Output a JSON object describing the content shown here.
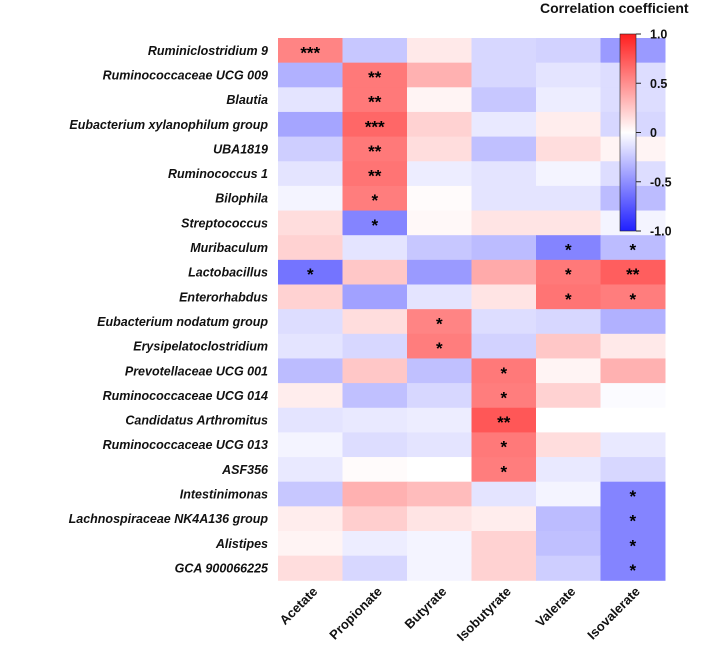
{
  "chart_data": {
    "type": "heatmap",
    "title": "",
    "xlabel": "",
    "ylabel": "",
    "columns": [
      "Acetate",
      "Propionate",
      "Butyrate",
      "Isobutyrate",
      "Valerate",
      "Isovalerate"
    ],
    "rows": [
      "Ruminiclostridium 9",
      "Ruminococcaceae UCG 009",
      "Blautia",
      "Eubacterium xylanophilum group",
      "UBA1819",
      "Ruminococcus 1",
      "Bilophila",
      "Streptococcus",
      "Muribaculum",
      "Lactobacillus",
      "Enterorhabdus",
      "Eubacterium nodatum group",
      "Erysipelatoclostridium",
      "Prevotellaceae UCG 001",
      "Ruminococcaceae UCG 014",
      "Candidatus Arthromitus",
      "Ruminococcaceae UCG 013",
      "ASF356",
      "Intestinimonas",
      "Lachnospiraceae NK4A136 group",
      "Alistipes",
      "GCA 900066225"
    ],
    "values": [
      [
        0.55,
        -0.25,
        0.1,
        -0.18,
        -0.2,
        -0.45
      ],
      [
        -0.35,
        0.6,
        0.35,
        -0.18,
        -0.12,
        -0.15
      ],
      [
        -0.12,
        0.6,
        0.05,
        -0.25,
        -0.08,
        -0.15
      ],
      [
        -0.4,
        0.68,
        0.2,
        -0.1,
        0.08,
        -0.18
      ],
      [
        -0.22,
        0.6,
        0.15,
        -0.28,
        0.15,
        0.05
      ],
      [
        -0.12,
        0.62,
        -0.08,
        -0.12,
        -0.05,
        -0.15
      ],
      [
        -0.05,
        0.58,
        0.02,
        -0.12,
        -0.12,
        -0.3
      ],
      [
        0.15,
        -0.55,
        0.03,
        0.12,
        0.12,
        -0.05
      ],
      [
        0.2,
        -0.12,
        -0.25,
        -0.3,
        -0.55,
        -0.3
      ],
      [
        -0.62,
        0.25,
        -0.45,
        0.38,
        0.6,
        0.72
      ],
      [
        0.2,
        -0.42,
        -0.12,
        0.12,
        0.62,
        0.58
      ],
      [
        -0.15,
        0.15,
        0.55,
        -0.15,
        -0.18,
        -0.35
      ],
      [
        -0.12,
        -0.18,
        0.58,
        -0.2,
        0.25,
        0.1
      ],
      [
        -0.3,
        0.25,
        -0.28,
        0.6,
        0.05,
        0.35
      ],
      [
        0.08,
        -0.28,
        -0.18,
        0.58,
        0.2,
        -0.02
      ],
      [
        -0.12,
        -0.1,
        -0.08,
        0.75,
        0.0,
        0.0
      ],
      [
        -0.05,
        -0.15,
        -0.12,
        0.6,
        0.15,
        -0.1
      ],
      [
        -0.1,
        0.02,
        0.0,
        0.58,
        -0.1,
        -0.18
      ],
      [
        -0.25,
        0.35,
        0.3,
        -0.12,
        -0.05,
        -0.55
      ],
      [
        0.08,
        0.22,
        0.12,
        0.08,
        -0.3,
        -0.55
      ],
      [
        0.05,
        -0.08,
        -0.05,
        0.2,
        -0.28,
        -0.55
      ],
      [
        0.15,
        -0.18,
        -0.05,
        0.2,
        -0.22,
        -0.55
      ]
    ],
    "significance": [
      [
        "***",
        "",
        "",
        "",
        "",
        ""
      ],
      [
        "",
        "**",
        "",
        "",
        "",
        ""
      ],
      [
        "",
        "**",
        "",
        "",
        "",
        ""
      ],
      [
        "",
        "***",
        "",
        "",
        "",
        ""
      ],
      [
        "",
        "**",
        "",
        "",
        "",
        ""
      ],
      [
        "",
        "**",
        "",
        "",
        "",
        ""
      ],
      [
        "",
        "*",
        "",
        "",
        "",
        ""
      ],
      [
        "",
        "*",
        "",
        "",
        "",
        ""
      ],
      [
        "",
        "",
        "",
        "",
        "*",
        "*"
      ],
      [
        "*",
        "",
        "",
        "",
        "*",
        "**"
      ],
      [
        "",
        "",
        "",
        "",
        "*",
        "*"
      ],
      [
        "",
        "",
        "*",
        "",
        "",
        ""
      ],
      [
        "",
        "",
        "*",
        "",
        "",
        ""
      ],
      [
        "",
        "",
        "",
        "*",
        "",
        ""
      ],
      [
        "",
        "",
        "",
        "*",
        "",
        ""
      ],
      [
        "",
        "",
        "",
        "**",
        "",
        ""
      ],
      [
        "",
        "",
        "",
        "*",
        "",
        ""
      ],
      [
        "",
        "",
        "",
        "*",
        "",
        ""
      ],
      [
        "",
        "",
        "",
        "",
        "",
        "*"
      ],
      [
        "",
        "",
        "",
        "",
        "",
        "*"
      ],
      [
        "",
        "",
        "",
        "",
        "",
        "*"
      ],
      [
        "",
        "",
        "",
        "",
        "",
        "*"
      ]
    ],
    "color_scale": {
      "title": "Correlation coefficient",
      "min": -1.0,
      "max": 1.0,
      "ticks": [
        1.0,
        0.5,
        0,
        -0.5,
        -1.0
      ],
      "tick_labels": [
        "1.0",
        "0.5",
        "0",
        "-0.5",
        "-1.0"
      ],
      "low_color": "#1f1fff",
      "mid_color": "#ffffff",
      "high_color": "#ff1f1f"
    }
  }
}
